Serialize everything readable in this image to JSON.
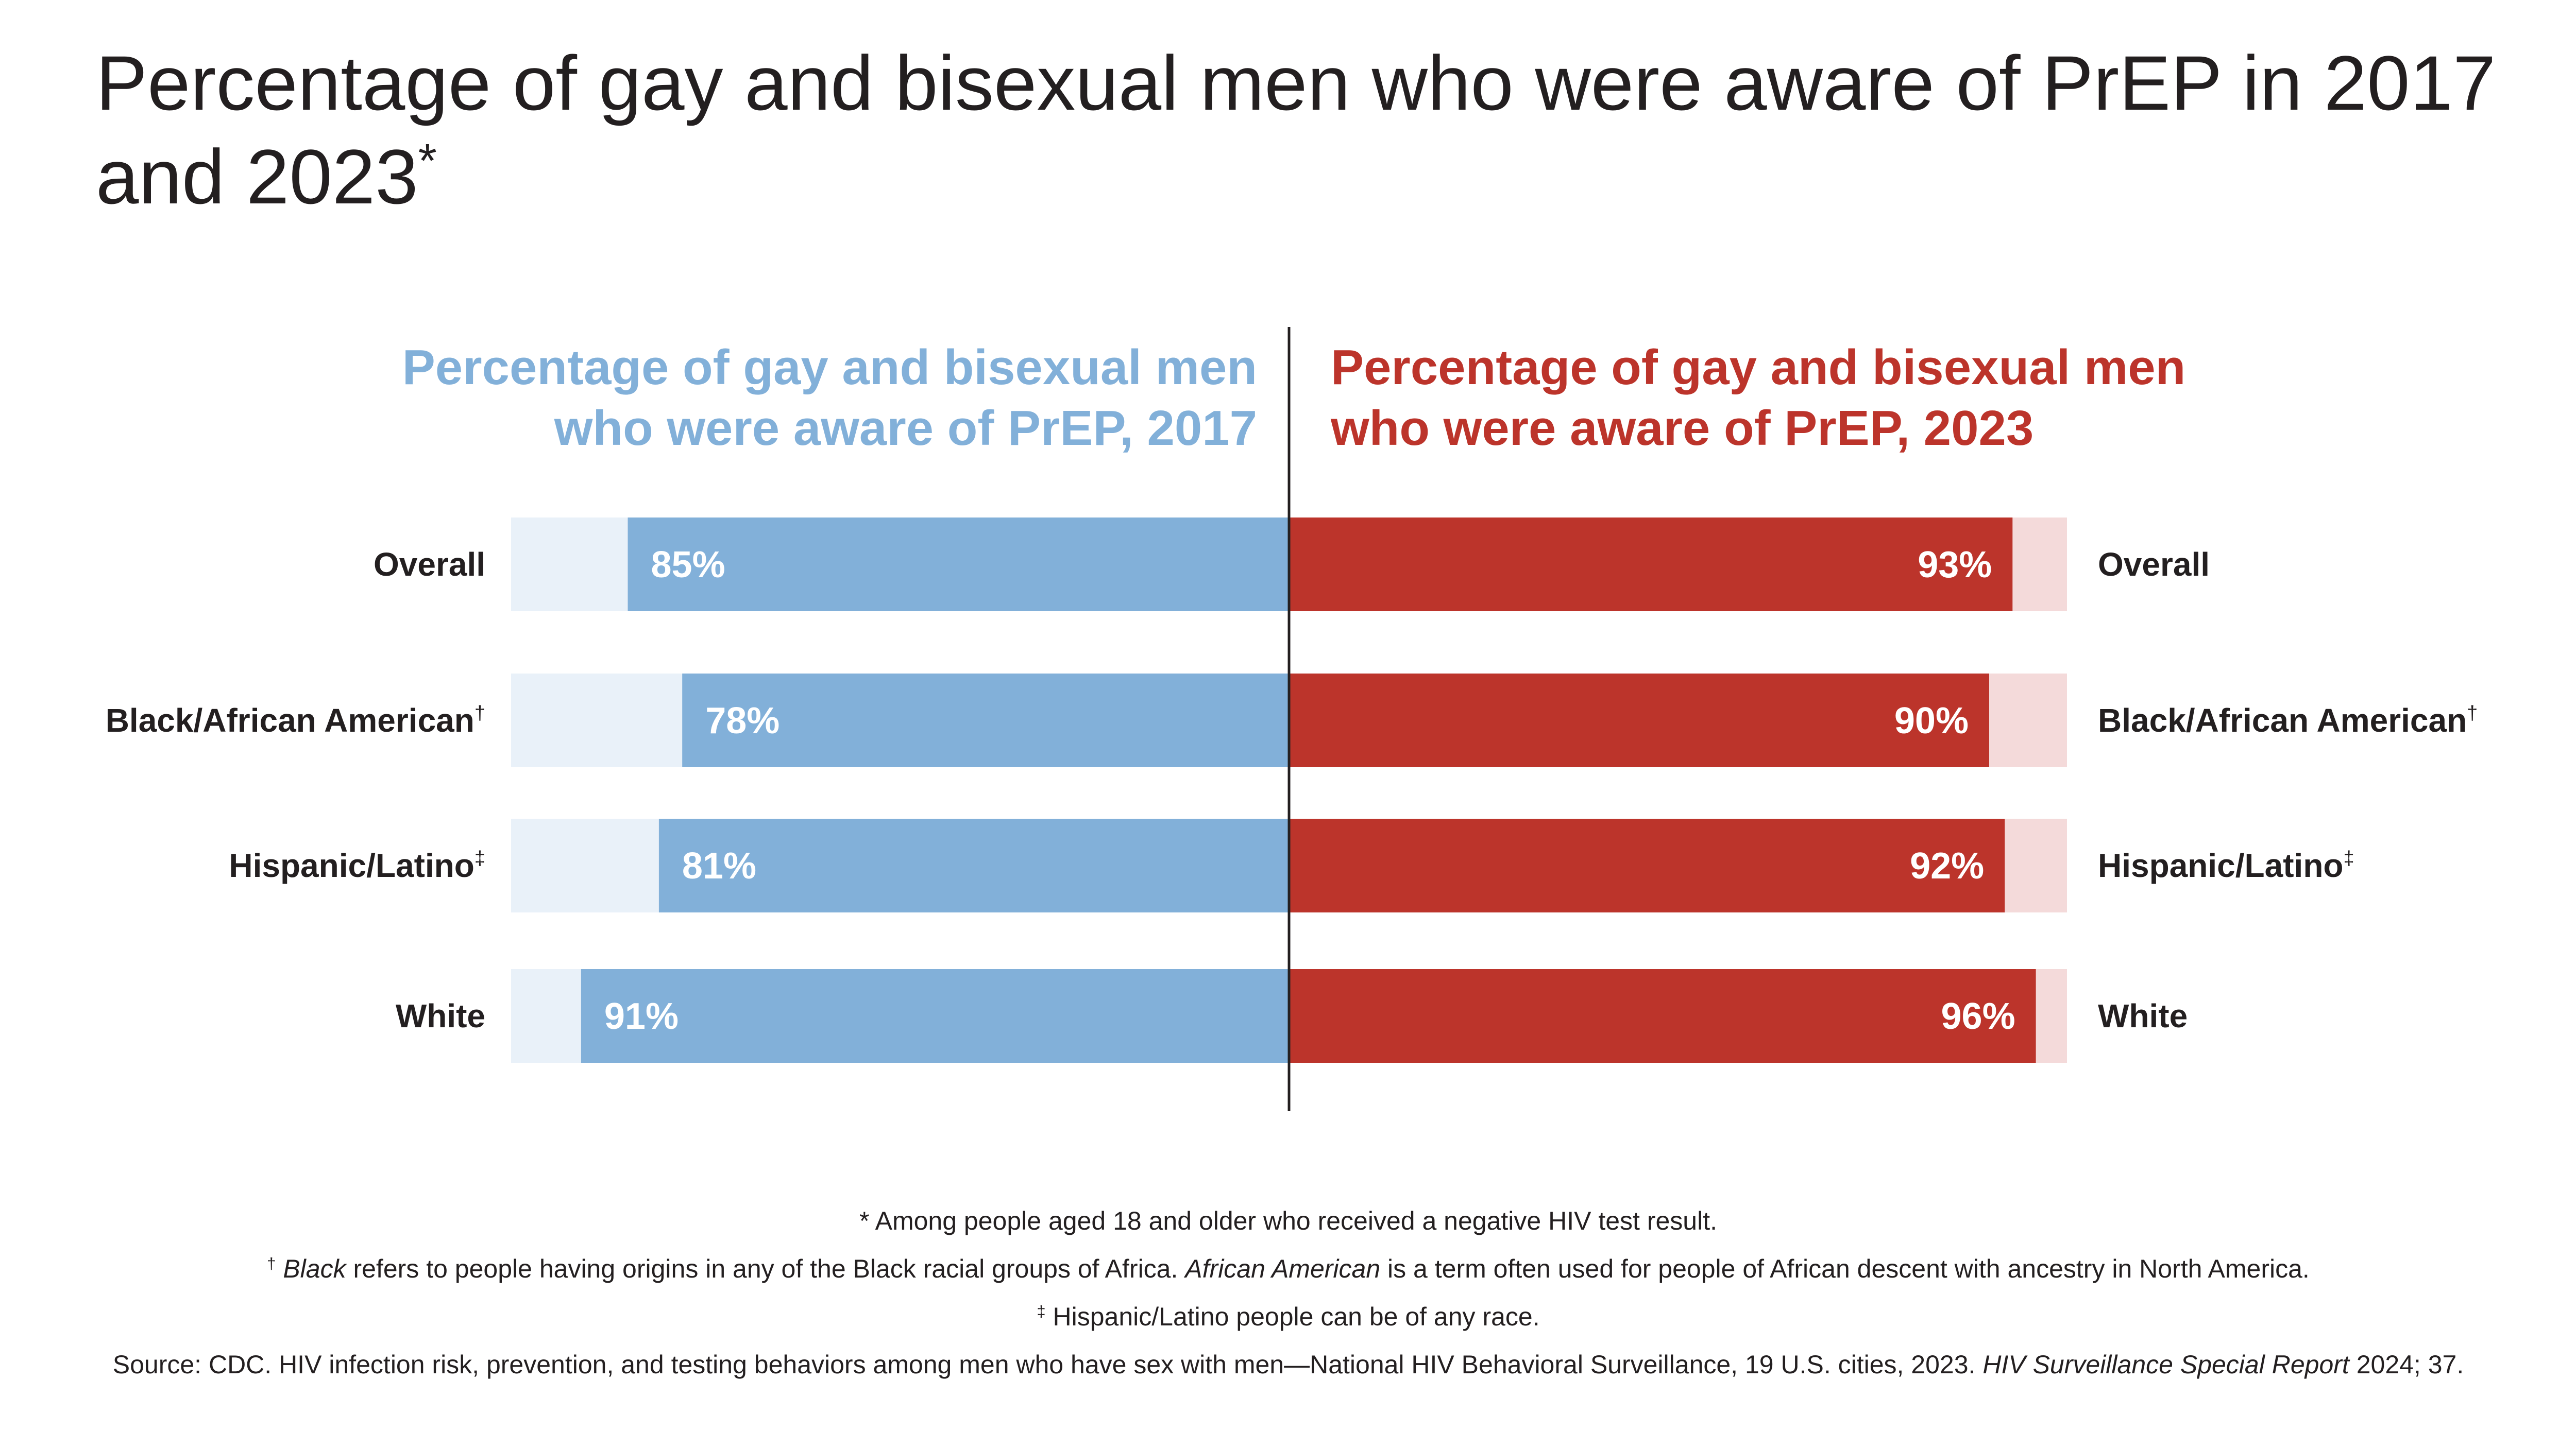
{
  "title": {
    "main": "Percentage of gay and bisexual men who were aware of PrEP in 2017 and 2023",
    "mark": "*"
  },
  "left_heading": {
    "line1": "Percentage of gay and bisexual men",
    "line2": "who were aware of PrEP, 2017"
  },
  "right_heading": {
    "line1": "Percentage of gay and bisexual men",
    "line2": "who were aware of PrEP, 2023"
  },
  "chart_data": {
    "type": "bar",
    "orientation": "horizontal-butterfly",
    "categories": [
      "Overall",
      "Black/African American",
      "Hispanic/Latino",
      "White"
    ],
    "category_marks": [
      "",
      "†",
      "‡",
      ""
    ],
    "series": [
      {
        "name": "2017",
        "values": [
          85,
          78,
          81,
          91
        ],
        "labels": [
          "85%",
          "78%",
          "81%",
          "91%"
        ],
        "color": "#82b0d9",
        "track_color": "#e9f1f9"
      },
      {
        "name": "2023",
        "values": [
          93,
          90,
          92,
          96
        ],
        "labels": [
          "93%",
          "90%",
          "92%",
          "96%"
        ],
        "color": "#bc342b",
        "track_color": "#f4dada"
      }
    ],
    "xlim": [
      0,
      100
    ],
    "axis_color": "#231f20",
    "grid": false,
    "legend": "none"
  },
  "footnotes": {
    "asterisk": {
      "mark": "*",
      "text": "Among people aged 18 and older who received a negative HIV test result."
    },
    "dagger": {
      "mark": "†",
      "term1": "Black",
      "text1": "refers to people having origins in any of the Black racial groups of Africa.",
      "term2": "African American",
      "text2": "is a term often used for people of African descent with ancestry in North America."
    },
    "ddagger": {
      "mark": "‡",
      "text": "Hispanic/Latino people can be of any race."
    },
    "source": {
      "text1": "Source: CDC. HIV infection risk, prevention, and testing behaviors among men who have sex with men—National HIV Behavioral Surveillance, 19 U.S. cities, 2023.",
      "journal": "HIV Surveillance Special Report",
      "text2": "2024; 37."
    }
  }
}
